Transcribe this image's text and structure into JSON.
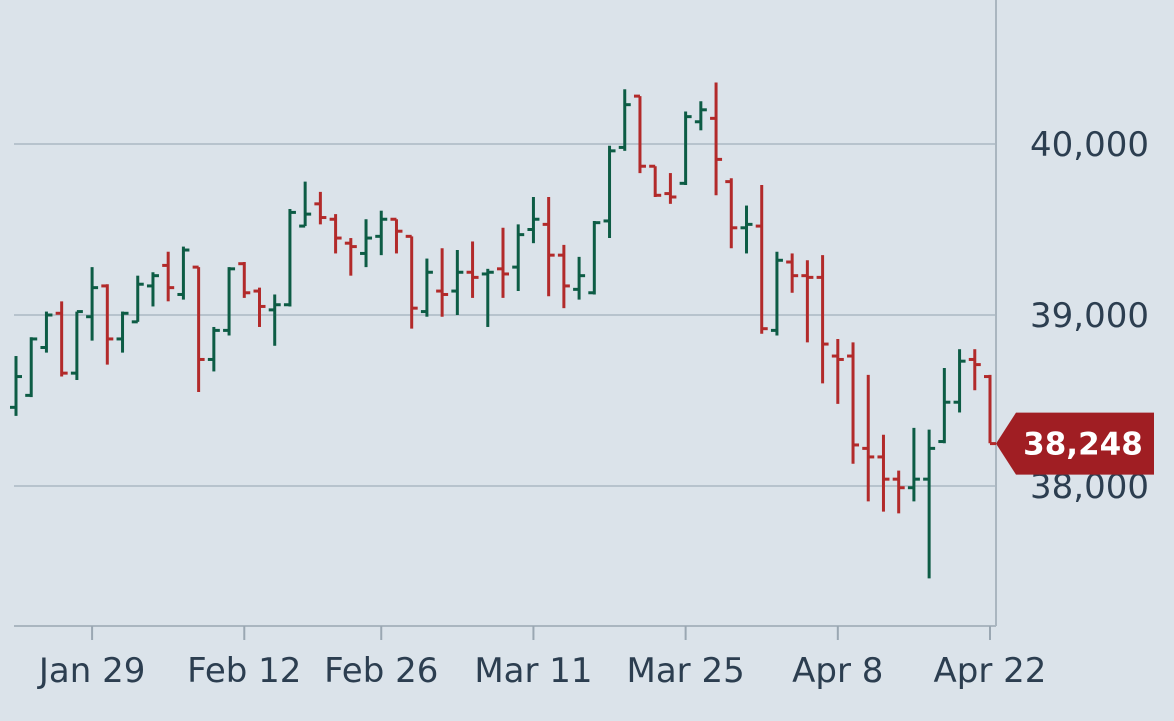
{
  "chart_data": {
    "type": "ohlc",
    "x_tick_labels": [
      "Jan 29",
      "Feb 12",
      "Feb 26",
      "Mar 11",
      "Mar 25",
      "Apr 8",
      "Apr 22"
    ],
    "y_ticks": [
      38000,
      39000,
      40000
    ],
    "y_tick_labels": [
      "38,000",
      "39,000",
      "40,000"
    ],
    "ylim": [
      36800,
      40820
    ],
    "last_price": 38248,
    "last_price_label": "38,248",
    "colors": {
      "up": "#0d5c45",
      "down": "#b22a2a",
      "badge": "#a01e23",
      "grid": "#b7c3cd",
      "axis": "#9aa7b2",
      "text": "#2c3e50",
      "background": "#dbe3ea"
    },
    "grid": true,
    "bars": [
      {
        "date": "Jan 22",
        "open": 38460,
        "high": 38760,
        "low": 38410,
        "close": 38640
      },
      {
        "date": "Jan 23",
        "open": 38530,
        "high": 38870,
        "low": 38520,
        "close": 38860
      },
      {
        "date": "Jan 24",
        "open": 38810,
        "high": 39020,
        "low": 38780,
        "close": 39000
      },
      {
        "date": "Jan 25",
        "open": 39010,
        "high": 39080,
        "low": 38640,
        "close": 38660
      },
      {
        "date": "Jan 26",
        "open": 38660,
        "high": 39020,
        "low": 38620,
        "close": 39020
      },
      {
        "date": "Jan 29",
        "open": 38990,
        "high": 39280,
        "low": 38850,
        "close": 39160
      },
      {
        "date": "Jan 30",
        "open": 39170,
        "high": 39180,
        "low": 38710,
        "close": 38860
      },
      {
        "date": "Jan 31",
        "open": 38860,
        "high": 39020,
        "low": 38780,
        "close": 39010
      },
      {
        "date": "Feb 1",
        "open": 38960,
        "high": 39230,
        "low": 38960,
        "close": 39180
      },
      {
        "date": "Feb 2",
        "open": 39170,
        "high": 39250,
        "low": 39050,
        "close": 39230
      },
      {
        "date": "Feb 5",
        "open": 39290,
        "high": 39370,
        "low": 39080,
        "close": 39160
      },
      {
        "date": "Feb 6",
        "open": 39120,
        "high": 39400,
        "low": 39090,
        "close": 39380
      },
      {
        "date": "Feb 7",
        "open": 39280,
        "high": 39280,
        "low": 38550,
        "close": 38740
      },
      {
        "date": "Feb 8",
        "open": 38740,
        "high": 38930,
        "low": 38670,
        "close": 38910
      },
      {
        "date": "Feb 9",
        "open": 38910,
        "high": 39280,
        "low": 38880,
        "close": 39270
      },
      {
        "date": "Feb 12",
        "open": 39300,
        "high": 39310,
        "low": 39100,
        "close": 39130
      },
      {
        "date": "Feb 13",
        "open": 39140,
        "high": 39160,
        "low": 38930,
        "close": 39050
      },
      {
        "date": "Feb 14",
        "open": 39030,
        "high": 39120,
        "low": 38820,
        "close": 39060
      },
      {
        "date": "Feb 15",
        "open": 39060,
        "high": 39620,
        "low": 39050,
        "close": 39600
      },
      {
        "date": "Feb 16",
        "open": 39520,
        "high": 39780,
        "low": 39520,
        "close": 39590
      },
      {
        "date": "Feb 20",
        "open": 39650,
        "high": 39720,
        "low": 39530,
        "close": 39570
      },
      {
        "date": "Feb 21",
        "open": 39560,
        "high": 39590,
        "low": 39360,
        "close": 39450
      },
      {
        "date": "Feb 22",
        "open": 39420,
        "high": 39450,
        "low": 39230,
        "close": 39400
      },
      {
        "date": "Feb 23",
        "open": 39360,
        "high": 39560,
        "low": 39280,
        "close": 39450
      },
      {
        "date": "Feb 26",
        "open": 39460,
        "high": 39610,
        "low": 39350,
        "close": 39560
      },
      {
        "date": "Feb 27",
        "open": 39560,
        "high": 39560,
        "low": 39360,
        "close": 39490
      },
      {
        "date": "Feb 28",
        "open": 39460,
        "high": 39460,
        "low": 38920,
        "close": 39040
      },
      {
        "date": "Feb 29",
        "open": 39020,
        "high": 39330,
        "low": 38990,
        "close": 39250
      },
      {
        "date": "Mar 1",
        "open": 39140,
        "high": 39390,
        "low": 38990,
        "close": 39120
      },
      {
        "date": "Mar 4",
        "open": 39140,
        "high": 39380,
        "low": 39000,
        "close": 39250
      },
      {
        "date": "Mar 5",
        "open": 39250,
        "high": 39430,
        "low": 39100,
        "close": 39220
      },
      {
        "date": "Mar 6",
        "open": 39240,
        "high": 39270,
        "low": 38930,
        "close": 39250
      },
      {
        "date": "Mar 7",
        "open": 39270,
        "high": 39510,
        "low": 39100,
        "close": 39240
      },
      {
        "date": "Mar 8",
        "open": 39280,
        "high": 39530,
        "low": 39140,
        "close": 39470
      },
      {
        "date": "Mar 11",
        "open": 39500,
        "high": 39690,
        "low": 39420,
        "close": 39560
      },
      {
        "date": "Mar 12",
        "open": 39530,
        "high": 39690,
        "low": 39110,
        "close": 39350
      },
      {
        "date": "Mar 13",
        "open": 39350,
        "high": 39410,
        "low": 39040,
        "close": 39170
      },
      {
        "date": "Mar 14",
        "open": 39150,
        "high": 39340,
        "low": 39090,
        "close": 39230
      },
      {
        "date": "Mar 15",
        "open": 39130,
        "high": 39550,
        "low": 39120,
        "close": 39540
      },
      {
        "date": "Mar 18",
        "open": 39550,
        "high": 39990,
        "low": 39450,
        "close": 39960
      },
      {
        "date": "Mar 19",
        "open": 39980,
        "high": 40320,
        "low": 39960,
        "close": 40230
      },
      {
        "date": "Mar 20",
        "open": 40280,
        "high": 40280,
        "low": 39830,
        "close": 39870
      },
      {
        "date": "Mar 21",
        "open": 39870,
        "high": 39870,
        "low": 39690,
        "close": 39700
      },
      {
        "date": "Mar 22",
        "open": 39710,
        "high": 39830,
        "low": 39650,
        "close": 39690
      },
      {
        "date": "Mar 25",
        "open": 39770,
        "high": 40190,
        "low": 39760,
        "close": 40160
      },
      {
        "date": "Mar 26",
        "open": 40130,
        "high": 40250,
        "low": 40080,
        "close": 40200
      },
      {
        "date": "Mar 27",
        "open": 40150,
        "high": 40360,
        "low": 39700,
        "close": 39910
      },
      {
        "date": "Mar 28",
        "open": 39780,
        "high": 39800,
        "low": 39390,
        "close": 39510
      },
      {
        "date": "Mar 29",
        "open": 39510,
        "high": 39640,
        "low": 39360,
        "close": 39530
      },
      {
        "date": "Apr 1",
        "open": 39520,
        "high": 39760,
        "low": 38890,
        "close": 38920
      },
      {
        "date": "Apr 2",
        "open": 38910,
        "high": 39370,
        "low": 38880,
        "close": 39320
      },
      {
        "date": "Apr 3",
        "open": 39310,
        "high": 39360,
        "low": 39130,
        "close": 39230
      },
      {
        "date": "Apr 4",
        "open": 39230,
        "high": 39320,
        "low": 38840,
        "close": 39220
      },
      {
        "date": "Apr 5",
        "open": 39220,
        "high": 39350,
        "low": 38600,
        "close": 38830
      },
      {
        "date": "Apr 8",
        "open": 38760,
        "high": 38860,
        "low": 38480,
        "close": 38740
      },
      {
        "date": "Apr 9",
        "open": 38760,
        "high": 38840,
        "low": 38130,
        "close": 38240
      },
      {
        "date": "Apr 10",
        "open": 38220,
        "high": 38650,
        "low": 37910,
        "close": 38170
      },
      {
        "date": "Apr 11",
        "open": 38170,
        "high": 38300,
        "low": 37850,
        "close": 38040
      },
      {
        "date": "Apr 12",
        "open": 38040,
        "high": 38090,
        "low": 37840,
        "close": 37990
      },
      {
        "date": "Apr 15",
        "open": 37990,
        "high": 38340,
        "low": 37910,
        "close": 38040
      },
      {
        "date": "Apr 16",
        "open": 38040,
        "high": 38330,
        "low": 37460,
        "close": 38220
      },
      {
        "date": "Apr 17",
        "open": 38260,
        "high": 38690,
        "low": 38250,
        "close": 38490
      },
      {
        "date": "Apr 18",
        "open": 38490,
        "high": 38800,
        "low": 38430,
        "close": 38730
      },
      {
        "date": "Apr 19",
        "open": 38740,
        "high": 38800,
        "low": 38560,
        "close": 38710
      },
      {
        "date": "Apr 22",
        "open": 38640,
        "high": 38650,
        "low": 38250,
        "close": 38248
      }
    ]
  }
}
